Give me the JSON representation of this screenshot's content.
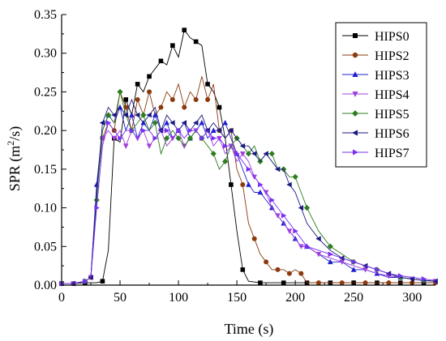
{
  "chart_data": {
    "type": "line",
    "xlabel": "Time (s)",
    "ylabel_main": "SPR (m",
    "ylabel_sup": "2",
    "ylabel_tail": "/s)",
    "xlim": [
      0,
      320
    ],
    "ylim": [
      0,
      0.35
    ],
    "xticks": [
      0,
      50,
      100,
      150,
      200,
      250,
      300
    ],
    "yticks": [
      0.0,
      0.05,
      0.1,
      0.15,
      0.2,
      0.25,
      0.3,
      0.35
    ],
    "ytick_labels": [
      "0.00",
      "0.05",
      "0.10",
      "0.15",
      "0.20",
      "0.25",
      "0.30",
      "0.35"
    ],
    "grid": false,
    "legend_position": "top-right",
    "series": [
      {
        "name": "HIPS0",
        "color": "#000000",
        "marker": "square",
        "x": [
          0,
          10,
          20,
          30,
          35,
          40,
          45,
          50,
          55,
          60,
          65,
          70,
          75,
          80,
          85,
          90,
          95,
          100,
          105,
          110,
          115,
          120,
          125,
          130,
          135,
          140,
          145,
          150,
          155,
          160,
          170,
          180,
          190,
          200,
          210,
          220,
          230,
          240,
          250,
          260,
          270,
          280,
          290,
          300,
          310,
          320
        ],
        "y": [
          0.002,
          0.002,
          0.003,
          0.003,
          0.005,
          0.045,
          0.19,
          0.185,
          0.24,
          0.22,
          0.26,
          0.25,
          0.27,
          0.28,
          0.29,
          0.285,
          0.31,
          0.295,
          0.33,
          0.32,
          0.315,
          0.31,
          0.26,
          0.25,
          0.23,
          0.19,
          0.13,
          0.07,
          0.02,
          0.005,
          0.003,
          0.003,
          0.003,
          0.003,
          0.003,
          0.003,
          0.003,
          0.003,
          0.003,
          0.003,
          0.003,
          0.003,
          0.003,
          0.003,
          0.003,
          0.003
        ]
      },
      {
        "name": "HIPS2",
        "color": "#8B3A0E",
        "marker": "circle",
        "x": [
          0,
          10,
          20,
          25,
          30,
          35,
          40,
          45,
          50,
          55,
          60,
          65,
          70,
          75,
          80,
          85,
          90,
          95,
          100,
          105,
          110,
          115,
          120,
          125,
          130,
          135,
          140,
          145,
          150,
          155,
          160,
          165,
          170,
          175,
          180,
          185,
          190,
          195,
          200,
          205,
          210,
          220,
          230,
          240,
          250,
          260,
          270,
          280,
          290,
          300,
          310,
          320
        ],
        "y": [
          0.002,
          0.002,
          0.005,
          0.01,
          0.12,
          0.19,
          0.21,
          0.2,
          0.25,
          0.23,
          0.2,
          0.24,
          0.22,
          0.25,
          0.22,
          0.23,
          0.25,
          0.24,
          0.26,
          0.23,
          0.25,
          0.24,
          0.27,
          0.24,
          0.26,
          0.2,
          0.19,
          0.2,
          0.15,
          0.13,
          0.08,
          0.06,
          0.04,
          0.03,
          0.02,
          0.02,
          0.02,
          0.015,
          0.02,
          0.015,
          0.003,
          0.003,
          0.003,
          0.003,
          0.003,
          0.003,
          0.003,
          0.003,
          0.003,
          0.003,
          0.003,
          0.003
        ]
      },
      {
        "name": "HIPS3",
        "color": "#1F1FD0",
        "marker": "triangle-up",
        "x": [
          0,
          10,
          20,
          25,
          30,
          35,
          40,
          45,
          50,
          55,
          60,
          65,
          70,
          75,
          80,
          85,
          90,
          95,
          100,
          105,
          110,
          115,
          120,
          125,
          130,
          135,
          140,
          145,
          150,
          155,
          160,
          165,
          170,
          175,
          180,
          185,
          190,
          195,
          200,
          205,
          210,
          220,
          230,
          240,
          250,
          260,
          270,
          280,
          290,
          300,
          310,
          320
        ],
        "y": [
          0.002,
          0.002,
          0.005,
          0.01,
          0.13,
          0.2,
          0.22,
          0.21,
          0.23,
          0.2,
          0.22,
          0.19,
          0.21,
          0.2,
          0.22,
          0.2,
          0.21,
          0.19,
          0.2,
          0.21,
          0.19,
          0.2,
          0.21,
          0.19,
          0.2,
          0.2,
          0.21,
          0.19,
          0.17,
          0.15,
          0.13,
          0.12,
          0.12,
          0.11,
          0.1,
          0.09,
          0.08,
          0.07,
          0.06,
          0.05,
          0.05,
          0.04,
          0.03,
          0.03,
          0.02,
          0.02,
          0.015,
          0.01,
          0.01,
          0.008,
          0.006,
          0.005
        ]
      },
      {
        "name": "HIPS4",
        "color": "#A040E0",
        "marker": "triangle-down",
        "x": [
          0,
          10,
          20,
          25,
          30,
          35,
          40,
          45,
          50,
          55,
          60,
          65,
          70,
          75,
          80,
          85,
          90,
          95,
          100,
          105,
          110,
          115,
          120,
          125,
          130,
          135,
          140,
          145,
          150,
          155,
          160,
          165,
          170,
          175,
          180,
          185,
          190,
          195,
          200,
          205,
          210,
          220,
          230,
          240,
          250,
          260,
          270,
          280,
          290,
          300,
          310,
          320
        ],
        "y": [
          0.002,
          0.002,
          0.005,
          0.01,
          0.12,
          0.19,
          0.2,
          0.19,
          0.2,
          0.18,
          0.2,
          0.19,
          0.2,
          0.18,
          0.19,
          0.2,
          0.18,
          0.19,
          0.2,
          0.18,
          0.19,
          0.2,
          0.19,
          0.2,
          0.18,
          0.19,
          0.17,
          0.18,
          0.16,
          0.17,
          0.16,
          0.14,
          0.13,
          0.12,
          0.1,
          0.09,
          0.08,
          0.07,
          0.06,
          0.05,
          0.05,
          0.04,
          0.035,
          0.03,
          0.025,
          0.02,
          0.015,
          0.012,
          0.01,
          0.008,
          0.006,
          0.005
        ]
      },
      {
        "name": "HIPS5",
        "color": "#2E7D1E",
        "marker": "diamond",
        "x": [
          0,
          10,
          20,
          25,
          30,
          35,
          40,
          45,
          50,
          55,
          60,
          65,
          70,
          75,
          80,
          85,
          90,
          95,
          100,
          105,
          110,
          115,
          120,
          125,
          130,
          135,
          140,
          145,
          150,
          155,
          160,
          165,
          170,
          175,
          180,
          185,
          190,
          195,
          200,
          205,
          210,
          220,
          230,
          240,
          250,
          260,
          270,
          280,
          290,
          300,
          310,
          320
        ],
        "y": [
          0.002,
          0.002,
          0.005,
          0.01,
          0.11,
          0.2,
          0.22,
          0.21,
          0.25,
          0.22,
          0.2,
          0.21,
          0.22,
          0.2,
          0.21,
          0.17,
          0.19,
          0.2,
          0.19,
          0.18,
          0.19,
          0.2,
          0.19,
          0.18,
          0.17,
          0.15,
          0.16,
          0.18,
          0.19,
          0.18,
          0.17,
          0.18,
          0.16,
          0.17,
          0.17,
          0.15,
          0.15,
          0.14,
          0.14,
          0.12,
          0.1,
          0.07,
          0.05,
          0.04,
          0.03,
          0.025,
          0.02,
          0.015,
          0.01,
          0.008,
          0.006,
          0.005
        ]
      },
      {
        "name": "HIPS6",
        "color": "#1A1A80",
        "marker": "triangle-left",
        "x": [
          0,
          10,
          20,
          25,
          30,
          35,
          40,
          45,
          50,
          55,
          60,
          65,
          70,
          75,
          80,
          85,
          90,
          95,
          100,
          105,
          110,
          115,
          120,
          125,
          130,
          135,
          140,
          145,
          150,
          155,
          160,
          165,
          170,
          175,
          180,
          185,
          190,
          195,
          200,
          205,
          210,
          220,
          230,
          240,
          250,
          260,
          270,
          280,
          290,
          300,
          310,
          320
        ],
        "y": [
          0.002,
          0.002,
          0.005,
          0.01,
          0.12,
          0.21,
          0.23,
          0.22,
          0.23,
          0.22,
          0.24,
          0.22,
          0.21,
          0.22,
          0.23,
          0.2,
          0.22,
          0.21,
          0.2,
          0.21,
          0.2,
          0.21,
          0.22,
          0.2,
          0.21,
          0.2,
          0.19,
          0.2,
          0.19,
          0.18,
          0.18,
          0.17,
          0.16,
          0.17,
          0.16,
          0.15,
          0.15,
          0.13,
          0.12,
          0.1,
          0.08,
          0.06,
          0.045,
          0.035,
          0.03,
          0.025,
          0.02,
          0.015,
          0.01,
          0.008,
          0.006,
          0.005
        ]
      },
      {
        "name": "HIPS7",
        "color": "#7A30F0",
        "marker": "triangle-right",
        "x": [
          0,
          10,
          20,
          25,
          30,
          35,
          40,
          45,
          50,
          55,
          60,
          65,
          70,
          75,
          80,
          85,
          90,
          95,
          100,
          105,
          110,
          115,
          120,
          125,
          130,
          135,
          140,
          145,
          150,
          155,
          160,
          165,
          170,
          175,
          180,
          185,
          190,
          195,
          200,
          205,
          210,
          220,
          230,
          240,
          250,
          260,
          270,
          280,
          290,
          300,
          310,
          320
        ],
        "y": [
          0.002,
          0.002,
          0.005,
          0.01,
          0.1,
          0.18,
          0.21,
          0.2,
          0.19,
          0.2,
          0.2,
          0.19,
          0.2,
          0.2,
          0.19,
          0.2,
          0.2,
          0.19,
          0.2,
          0.19,
          0.2,
          0.2,
          0.19,
          0.2,
          0.19,
          0.19,
          0.18,
          0.18,
          0.17,
          0.16,
          0.15,
          0.14,
          0.13,
          0.12,
          0.11,
          0.1,
          0.09,
          0.08,
          0.07,
          0.06,
          0.05,
          0.045,
          0.04,
          0.035,
          0.03,
          0.025,
          0.02,
          0.015,
          0.012,
          0.01,
          0.008,
          0.006
        ]
      }
    ]
  }
}
